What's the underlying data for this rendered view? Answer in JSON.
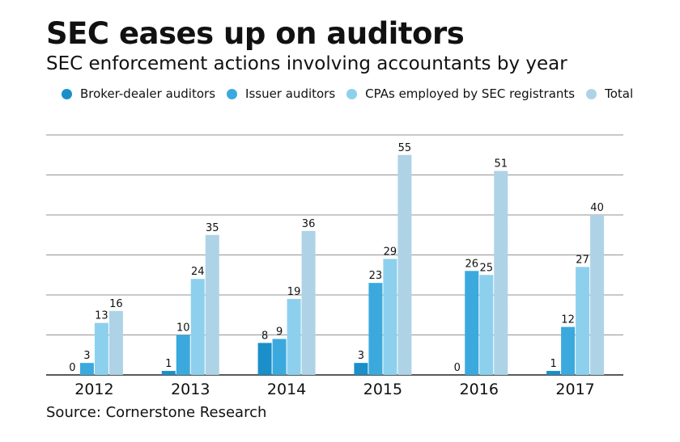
{
  "header": {
    "title": "SEC eases up on auditors",
    "subtitle": "SEC enforcement actions involving accountants by year"
  },
  "legend": {
    "items": [
      {
        "label": "Broker-dealer auditors",
        "color": "#1a8fc9"
      },
      {
        "label": "Issuer auditors",
        "color": "#3ba9de"
      },
      {
        "label": "CPAs employed by SEC registrants",
        "color": "#8dd0ee"
      },
      {
        "label": "Total",
        "color": "#aed3e6"
      }
    ]
  },
  "footer": {
    "source": "Source: Cornerstone Research"
  },
  "chart_data": {
    "type": "bar",
    "title": "SEC eases up on auditors",
    "subtitle": "SEC enforcement actions involving accountants by year",
    "xlabel": "",
    "ylabel": "",
    "categories": [
      "2012",
      "2013",
      "2014",
      "2015",
      "2016",
      "2017"
    ],
    "series": [
      {
        "name": "Broker-dealer auditors",
        "color": "#1a8fc9",
        "values": [
          0,
          1,
          8,
          3,
          0,
          1
        ]
      },
      {
        "name": "Issuer auditors",
        "color": "#3ba9de",
        "values": [
          3,
          10,
          9,
          23,
          26,
          12
        ]
      },
      {
        "name": "CPAs employed by SEC registrants",
        "color": "#8dd0ee",
        "values": [
          13,
          24,
          19,
          29,
          25,
          27
        ]
      },
      {
        "name": "Total",
        "color": "#aed3e6",
        "values": [
          16,
          35,
          36,
          55,
          51,
          40
        ]
      }
    ],
    "ylim": [
      0,
      60
    ],
    "grid": true,
    "legend_position": "top"
  }
}
